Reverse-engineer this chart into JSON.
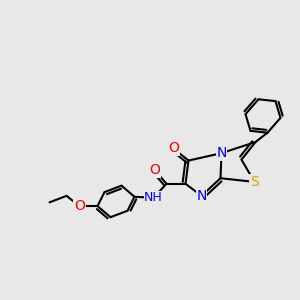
{
  "background_color": "#e8e8e8",
  "bond_color": "#000000",
  "bond_width": 1.5,
  "atom_colors": {
    "N": "#0000ff",
    "O": "#ff0000",
    "S": "#ccaa00",
    "C": "#000000"
  },
  "font_size": 9
}
